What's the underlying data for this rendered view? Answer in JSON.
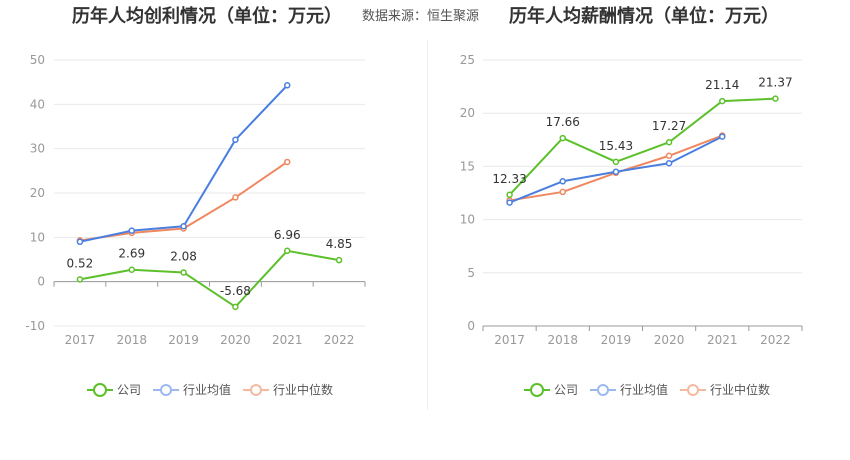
{
  "header": {
    "source": "数据来源：恒生聚源"
  },
  "legend_labels": [
    "公司",
    "行业均值",
    "行业中位数"
  ],
  "colors": {
    "company": "#5cc02a",
    "mean": "#4a7fe0",
    "median": "#f0875f"
  },
  "chart_data": [
    {
      "type": "line",
      "title": "历年人均创利情况（单位：万元）",
      "x": [
        "2017",
        "2018",
        "2019",
        "2020",
        "2021",
        "2022"
      ],
      "ylim": [
        -10,
        50
      ],
      "yticks": [
        -10,
        0,
        10,
        20,
        30,
        40,
        50
      ],
      "grid": true,
      "legend_position": "bottom",
      "series": [
        {
          "name": "公司",
          "values": [
            0.52,
            2.69,
            2.08,
            -5.68,
            6.96,
            4.85
          ],
          "labels": [
            "0.52",
            "2.69",
            "2.08",
            "-5.68",
            "6.96",
            "4.85"
          ]
        },
        {
          "name": "行业均值",
          "values": [
            9.0,
            11.5,
            12.5,
            32.0,
            44.3,
            null
          ]
        },
        {
          "name": "行业中位数",
          "values": [
            9.3,
            11.0,
            12.0,
            19.0,
            27.0,
            null
          ]
        }
      ]
    },
    {
      "type": "line",
      "title": "历年人均薪酬情况（单位：万元）",
      "x": [
        "2017",
        "2018",
        "2019",
        "2020",
        "2021",
        "2022"
      ],
      "ylim": [
        0,
        25
      ],
      "yticks": [
        0,
        5,
        10,
        15,
        20,
        25
      ],
      "grid": true,
      "legend_position": "bottom",
      "series": [
        {
          "name": "公司",
          "values": [
            12.33,
            17.66,
            15.43,
            17.27,
            21.14,
            21.37
          ],
          "labels": [
            "12.33",
            "17.66",
            "15.43",
            "17.27",
            "21.14",
            "21.37"
          ]
        },
        {
          "name": "行业均值",
          "values": [
            11.6,
            13.6,
            14.5,
            15.3,
            17.8,
            null
          ]
        },
        {
          "name": "行业中位数",
          "values": [
            11.8,
            12.6,
            14.4,
            16.0,
            17.9,
            null
          ]
        }
      ]
    }
  ]
}
